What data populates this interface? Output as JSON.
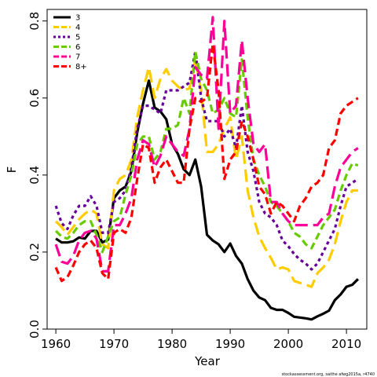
{
  "chart_data": {
    "type": "line",
    "xlabel": "Year",
    "ylabel": "F",
    "xlim": [
      1958.5,
      2013.5
    ],
    "ylim": [
      0.0,
      0.83
    ],
    "x_ticks": [
      1960,
      1970,
      1980,
      1990,
      2000,
      2010
    ],
    "y_ticks": [
      0.0,
      0.2,
      0.4,
      0.6,
      0.8
    ],
    "x_tick_labels": [
      "1960",
      "1970",
      "1980",
      "1990",
      "2000",
      "2010"
    ],
    "y_tick_labels": [
      "0.0",
      "0.2",
      "0.4",
      "0.6",
      "0.8"
    ],
    "legend_position": "top-left",
    "footnote": "stockassessment.org, saithe afwg2015a, r4740",
    "series": [
      {
        "name": "3",
        "color": "#000000",
        "dash": "solid",
        "x": [
          1960,
          1961,
          1962,
          1963,
          1964,
          1965,
          1966,
          1967,
          1968,
          1969,
          1970,
          1971,
          1972,
          1973,
          1974,
          1975,
          1976,
          1977,
          1978,
          1979,
          1980,
          1981,
          1982,
          1983,
          1984,
          1985,
          1986,
          1987,
          1988,
          1989,
          1990,
          1991,
          1992,
          1993,
          1994,
          1995,
          1996,
          1997,
          1998,
          1999,
          2000,
          2001,
          2002,
          2003,
          2004,
          2005,
          2006,
          2007,
          2008,
          2009,
          2010,
          2011,
          2012
        ],
        "values": [
          0.235,
          0.225,
          0.225,
          0.228,
          0.238,
          0.235,
          0.255,
          0.255,
          0.225,
          0.232,
          0.34,
          0.36,
          0.37,
          0.41,
          0.51,
          0.585,
          0.645,
          0.575,
          0.565,
          0.545,
          0.48,
          0.455,
          0.415,
          0.4,
          0.44,
          0.37,
          0.245,
          0.23,
          0.22,
          0.2,
          0.222,
          0.19,
          0.17,
          0.13,
          0.1,
          0.082,
          0.075,
          0.055,
          0.05,
          0.05,
          0.042,
          0.032,
          0.03,
          0.028,
          0.025,
          0.033,
          0.04,
          0.048,
          0.075,
          0.09,
          0.11,
          0.115,
          0.13
        ]
      },
      {
        "name": "4",
        "color": "#FFCC00",
        "dash": "long",
        "x": [
          1960,
          1961,
          1962,
          1963,
          1964,
          1965,
          1966,
          1967,
          1968,
          1969,
          1970,
          1971,
          1972,
          1973,
          1974,
          1975,
          1976,
          1977,
          1978,
          1979,
          1980,
          1981,
          1982,
          1983,
          1984,
          1985,
          1986,
          1987,
          1988,
          1989,
          1990,
          1991,
          1992,
          1993,
          1994,
          1995,
          1996,
          1997,
          1998,
          1999,
          2000,
          2001,
          2002,
          2003,
          2004,
          2005,
          2006,
          2007,
          2008,
          2009,
          2010,
          2011,
          2012
        ],
        "values": [
          0.28,
          0.265,
          0.245,
          0.265,
          0.285,
          0.3,
          0.31,
          0.3,
          0.22,
          0.21,
          0.36,
          0.39,
          0.4,
          0.44,
          0.55,
          0.62,
          0.68,
          0.6,
          0.65,
          0.675,
          0.645,
          0.63,
          0.62,
          0.625,
          0.7,
          0.62,
          0.46,
          0.46,
          0.48,
          0.52,
          0.55,
          0.44,
          0.5,
          0.36,
          0.29,
          0.24,
          0.21,
          0.185,
          0.155,
          0.16,
          0.155,
          0.125,
          0.12,
          0.115,
          0.11,
          0.145,
          0.16,
          0.18,
          0.22,
          0.28,
          0.33,
          0.36,
          0.36
        ]
      },
      {
        "name": "5",
        "color": "#660099",
        "dash": "dotted",
        "x": [
          1960,
          1961,
          1962,
          1963,
          1964,
          1965,
          1966,
          1967,
          1968,
          1969,
          1970,
          1971,
          1972,
          1973,
          1974,
          1975,
          1976,
          1977,
          1978,
          1979,
          1980,
          1981,
          1982,
          1983,
          1984,
          1985,
          1986,
          1987,
          1988,
          1989,
          1990,
          1991,
          1992,
          1993,
          1994,
          1995,
          1996,
          1997,
          1998,
          1999,
          2000,
          2001,
          2002,
          2003,
          2004,
          2005,
          2006,
          2007,
          2008,
          2009,
          2010,
          2011,
          2012
        ],
        "values": [
          0.32,
          0.275,
          0.26,
          0.295,
          0.32,
          0.32,
          0.345,
          0.32,
          0.25,
          0.25,
          0.33,
          0.34,
          0.36,
          0.42,
          0.52,
          0.58,
          0.58,
          0.57,
          0.56,
          0.62,
          0.62,
          0.62,
          0.63,
          0.64,
          0.72,
          0.6,
          0.54,
          0.54,
          0.54,
          0.5,
          0.52,
          0.47,
          0.58,
          0.46,
          0.41,
          0.33,
          0.3,
          0.29,
          0.27,
          0.23,
          0.215,
          0.195,
          0.18,
          0.17,
          0.155,
          0.17,
          0.2,
          0.23,
          0.26,
          0.32,
          0.37,
          0.38,
          0.39
        ]
      },
      {
        "name": "6",
        "color": "#66CC00",
        "dash": "dashed",
        "x": [
          1960,
          1961,
          1962,
          1963,
          1964,
          1965,
          1966,
          1967,
          1968,
          1969,
          1970,
          1971,
          1972,
          1973,
          1974,
          1975,
          1976,
          1977,
          1978,
          1979,
          1980,
          1981,
          1982,
          1983,
          1984,
          1985,
          1986,
          1987,
          1988,
          1989,
          1990,
          1991,
          1992,
          1993,
          1994,
          1995,
          1996,
          1997,
          1998,
          1999,
          2000,
          2001,
          2002,
          2003,
          2004,
          2005,
          2006,
          2007,
          2008,
          2009,
          2010,
          2011,
          2012
        ],
        "values": [
          0.255,
          0.24,
          0.235,
          0.25,
          0.27,
          0.28,
          0.28,
          0.245,
          0.2,
          0.24,
          0.28,
          0.29,
          0.35,
          0.4,
          0.48,
          0.5,
          0.5,
          0.44,
          0.46,
          0.52,
          0.52,
          0.53,
          0.6,
          0.56,
          0.72,
          0.65,
          0.62,
          0.56,
          0.57,
          0.6,
          0.56,
          0.55,
          0.7,
          0.55,
          0.44,
          0.4,
          0.37,
          0.33,
          0.32,
          0.3,
          0.28,
          0.25,
          0.24,
          0.22,
          0.21,
          0.24,
          0.27,
          0.29,
          0.31,
          0.36,
          0.4,
          0.43,
          0.425
        ]
      },
      {
        "name": "7",
        "color": "#FF0099",
        "dash": "long",
        "x": [
          1960,
          1961,
          1962,
          1963,
          1964,
          1965,
          1966,
          1967,
          1968,
          1969,
          1970,
          1971,
          1972,
          1973,
          1974,
          1975,
          1976,
          1977,
          1978,
          1979,
          1980,
          1981,
          1982,
          1983,
          1984,
          1985,
          1986,
          1987,
          1988,
          1989,
          1990,
          1991,
          1992,
          1993,
          1994,
          1995,
          1996,
          1997,
          1998,
          1999,
          2000,
          2001,
          2002,
          2003,
          2004,
          2005,
          2006,
          2007,
          2008,
          2009,
          2010,
          2011,
          2012
        ],
        "values": [
          0.22,
          0.175,
          0.17,
          0.19,
          0.23,
          0.25,
          0.255,
          0.235,
          0.15,
          0.15,
          0.27,
          0.27,
          0.3,
          0.34,
          0.44,
          0.49,
          0.48,
          0.42,
          0.45,
          0.5,
          0.48,
          0.46,
          0.45,
          0.52,
          0.68,
          0.66,
          0.65,
          0.81,
          0.52,
          0.8,
          0.56,
          0.58,
          0.75,
          0.6,
          0.48,
          0.46,
          0.48,
          0.33,
          0.33,
          0.3,
          0.28,
          0.27,
          0.27,
          0.27,
          0.27,
          0.27,
          0.29,
          0.3,
          0.37,
          0.42,
          0.44,
          0.46,
          0.47
        ]
      },
      {
        "name": "8+",
        "color": "#FF0000",
        "dash": "dashed",
        "x": [
          1960,
          1961,
          1962,
          1963,
          1964,
          1965,
          1966,
          1967,
          1968,
          1969,
          1970,
          1971,
          1972,
          1973,
          1974,
          1975,
          1976,
          1977,
          1978,
          1979,
          1980,
          1981,
          1982,
          1983,
          1984,
          1985,
          1986,
          1987,
          1988,
          1989,
          1990,
          1991,
          1992,
          1993,
          1994,
          1995,
          1996,
          1997,
          1998,
          1999,
          2000,
          2001,
          2002,
          2003,
          2004,
          2005,
          2006,
          2007,
          2008,
          2009,
          2010,
          2011,
          2012
        ],
        "values": [
          0.16,
          0.125,
          0.135,
          0.165,
          0.2,
          0.22,
          0.23,
          0.21,
          0.145,
          0.13,
          0.25,
          0.26,
          0.25,
          0.29,
          0.39,
          0.48,
          0.47,
          0.38,
          0.42,
          0.44,
          0.41,
          0.38,
          0.38,
          0.52,
          0.6,
          0.59,
          0.6,
          0.74,
          0.62,
          0.39,
          0.44,
          0.46,
          0.54,
          0.5,
          0.44,
          0.37,
          0.35,
          0.3,
          0.33,
          0.32,
          0.3,
          0.28,
          0.32,
          0.34,
          0.37,
          0.38,
          0.4,
          0.47,
          0.49,
          0.56,
          0.58,
          0.59,
          0.6
        ]
      }
    ]
  }
}
